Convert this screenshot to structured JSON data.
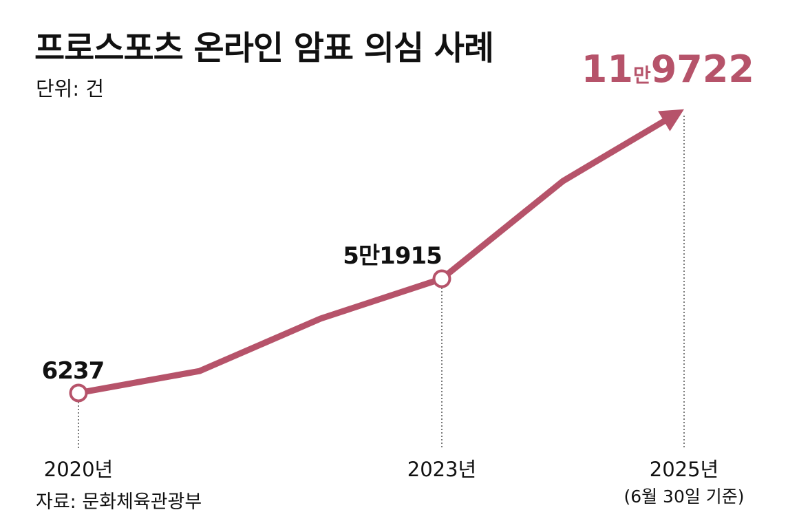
{
  "title": "프로스포츠 온라인 암표 의심 사례",
  "unit_label": "단위: 건",
  "source": "자료: 문화체육관광부",
  "colors": {
    "series": "#b6536a",
    "text": "#111111",
    "guide": "#333333"
  },
  "chart_data": {
    "type": "line",
    "title": "프로스포츠 온라인 암표 의심 사례",
    "unit": "단위: 건",
    "x": [
      2020,
      2021,
      2022,
      2023,
      2024,
      2025
    ],
    "series": [
      {
        "values": [
          6237,
          15000,
          36000,
          51915,
          91000,
          119722
        ]
      }
    ],
    "marked_points": [
      {
        "x": 2020,
        "value": 6237,
        "label": "6237",
        "marker": "circle"
      },
      {
        "x": 2023,
        "value": 51915,
        "label": "5만1915",
        "marker": "circle"
      },
      {
        "x": 2025,
        "value": 119722,
        "label_parts": [
          "11",
          "만",
          "9722"
        ],
        "marker": "arrow"
      }
    ],
    "x_tick_labels": [
      {
        "x": 2020,
        "label": "2020년"
      },
      {
        "x": 2023,
        "label": "2023년"
      },
      {
        "x": 2025,
        "label": "2025년",
        "sublabel": "(6월 30일 기준)"
      }
    ],
    "grid": false,
    "legend": "none"
  }
}
